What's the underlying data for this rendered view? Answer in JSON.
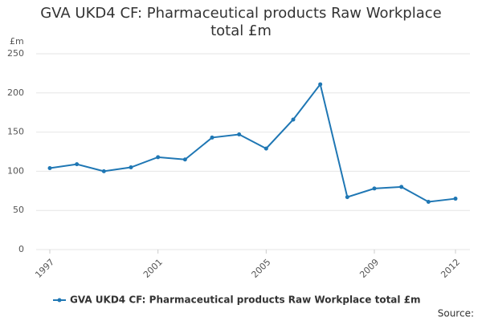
{
  "chart_data": {
    "type": "line",
    "title": "GVA UKD4 CF: Pharmaceutical products Raw Workplace total £m",
    "y_label": "£m",
    "source": "Source:",
    "x": [
      1997,
      1998,
      1999,
      2000,
      2001,
      2002,
      2003,
      2004,
      2005,
      2006,
      2007,
      2008,
      2009,
      2010,
      2011,
      2012
    ],
    "series": [
      {
        "name": "GVA UKD4 CF: Pharmaceutical products Raw Workplace total £m",
        "color": "#1f77b4",
        "values": [
          104,
          109,
          100,
          105,
          118,
          115,
          143,
          147,
          129,
          166,
          211,
          67,
          78,
          80,
          61,
          65
        ]
      }
    ],
    "xlim": [
      1997,
      2012
    ],
    "xticks": [
      1997,
      2001,
      2005,
      2009,
      2012
    ],
    "ylim": [
      0,
      250
    ],
    "yticks": [
      0,
      50,
      100,
      150,
      200,
      250
    ],
    "grid": true
  }
}
